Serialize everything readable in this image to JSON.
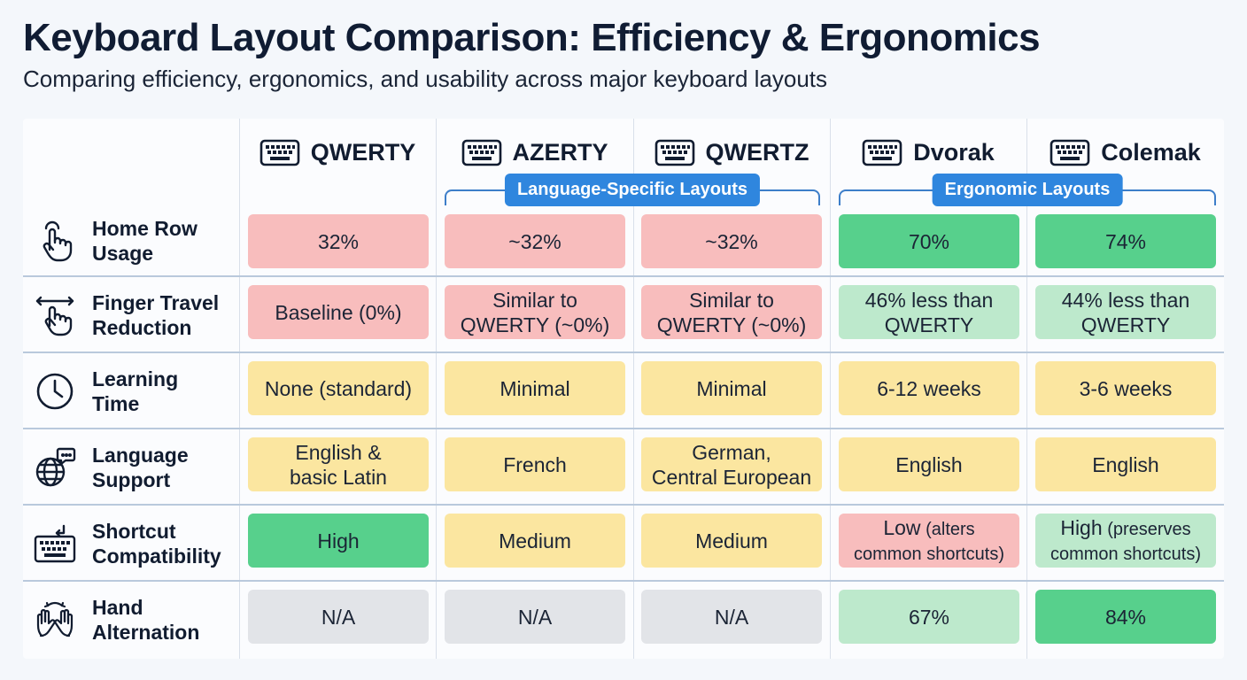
{
  "title": "Keyboard Layout Comparison: Efficiency & Ergonomics",
  "subtitle": "Comparing efficiency, ergonomics, and usability across major keyboard layouts",
  "columns": [
    "QWERTY",
    "AZERTY",
    "QWERTZ",
    "Dvorak",
    "Colemak"
  ],
  "groups": {
    "language": "Language-Specific Layouts",
    "ergonomic": "Ergonomic Layouts"
  },
  "rows": [
    {
      "label": [
        "Home Row",
        "Usage"
      ],
      "icon": "tap-hand-icon",
      "cells": [
        {
          "text": "32%",
          "color": "red"
        },
        {
          "text": "~32%",
          "color": "red"
        },
        {
          "text": "~32%",
          "color": "red"
        },
        {
          "text": "70%",
          "color": "green"
        },
        {
          "text": "74%",
          "color": "green"
        }
      ]
    },
    {
      "label": [
        "Finger Travel",
        "Reduction"
      ],
      "icon": "swipe-hand-icon",
      "cells": [
        {
          "text": "Baseline (0%)",
          "color": "red"
        },
        {
          "text": "Similar to QWERTY (~0%)",
          "lines": [
            "Similar to",
            "QWERTY (~0%)"
          ],
          "color": "red"
        },
        {
          "text": "Similar to QWERTY (~0%)",
          "lines": [
            "Similar to",
            "QWERTY (~0%)"
          ],
          "color": "red"
        },
        {
          "text": "46% less than QWERTY",
          "lines": [
            "46% less than",
            "QWERTY"
          ],
          "color": "lightgreen"
        },
        {
          "text": "44% less than QWERTY",
          "lines": [
            "44% less than",
            "QWERTY"
          ],
          "color": "lightgreen"
        }
      ]
    },
    {
      "label": [
        "Learning",
        "Time"
      ],
      "icon": "clock-icon",
      "cells": [
        {
          "text": "None (standard)",
          "color": "yellow"
        },
        {
          "text": "Minimal",
          "color": "yellow"
        },
        {
          "text": "Minimal",
          "color": "yellow"
        },
        {
          "text": "6-12 weeks",
          "color": "yellow"
        },
        {
          "text": "3-6 weeks",
          "color": "yellow"
        }
      ]
    },
    {
      "label": [
        "Language",
        "Support"
      ],
      "icon": "globe-chat-icon",
      "cells": [
        {
          "text": "English & basic Latin",
          "lines": [
            "English &",
            "basic Latin"
          ],
          "color": "yellow"
        },
        {
          "text": "French",
          "color": "yellow"
        },
        {
          "text": "German, Central European",
          "lines": [
            "German,",
            "Central European"
          ],
          "color": "yellow"
        },
        {
          "text": "English",
          "color": "yellow"
        },
        {
          "text": "English",
          "color": "yellow"
        }
      ]
    },
    {
      "label": [
        "Shortcut",
        "Compatibility"
      ],
      "icon": "keyboard-icon",
      "cells": [
        {
          "text": "High",
          "color": "green"
        },
        {
          "text": "Medium",
          "color": "yellow"
        },
        {
          "text": "Medium",
          "color": "yellow"
        },
        {
          "text": "Low (alters common shortcuts)",
          "lines": [
            "Low (alters",
            "common shortcuts)"
          ],
          "color": "red"
        },
        {
          "text": "High (preserves common shortcuts)",
          "lines": [
            "High (preserves",
            "common shortcuts)"
          ],
          "color": "lightgreen"
        }
      ]
    },
    {
      "label": [
        "Hand",
        "Alternation"
      ],
      "icon": "two-hands-icon",
      "cells": [
        {
          "text": "N/A",
          "color": "gray"
        },
        {
          "text": "N/A",
          "color": "gray"
        },
        {
          "text": "N/A",
          "color": "gray"
        },
        {
          "text": "67%",
          "color": "lightgreen"
        },
        {
          "text": "84%",
          "color": "green"
        }
      ]
    }
  ],
  "colors": {
    "red": "#f8bdbd",
    "yellow": "#fbe6a0",
    "green": "#57d08c",
    "lightgreen": "#bde9cc",
    "gray": "#e2e4e8",
    "accent": "#2f86de"
  }
}
